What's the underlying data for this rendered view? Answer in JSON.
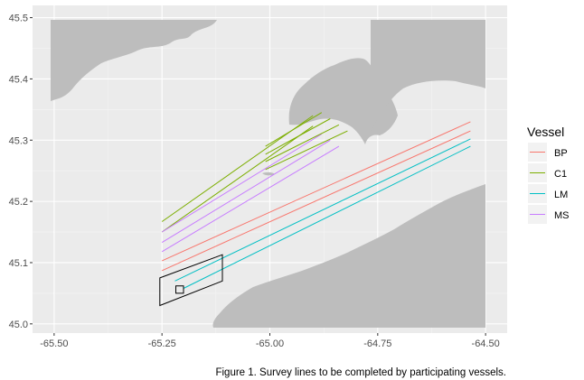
{
  "chart_data": {
    "type": "map",
    "caption": "Figure 1. Survey lines to be completed by participating vessels.",
    "x_ticks": [
      "-65.50",
      "-65.25",
      "-65.00",
      "-64.75",
      "-64.50"
    ],
    "y_ticks": [
      "45.0",
      "45.1",
      "45.2",
      "45.3",
      "45.4",
      "45.5"
    ],
    "x_tick_values": [
      -65.5,
      -65.25,
      -65.0,
      -64.75,
      -64.5
    ],
    "y_tick_values": [
      45.0,
      45.1,
      45.2,
      45.3,
      45.4,
      45.5
    ],
    "xlim": [
      -65.55,
      -64.45
    ],
    "ylim": [
      44.985,
      45.52
    ],
    "legend": {
      "title": "Vessel",
      "placement": "right",
      "entries": [
        {
          "label": "BP",
          "color": "#F8766D"
        },
        {
          "label": "C1",
          "color": "#7CAE00"
        },
        {
          "label": "LM",
          "color": "#00BFC4"
        },
        {
          "label": "MS",
          "color": "#C77CFF"
        }
      ]
    },
    "panel_background": "#ebebeb",
    "land_color": "#bdbdbd",
    "series": [
      {
        "name": "C1",
        "color": "#7CAE00",
        "lines": [
          [
            [
              -65.25,
              45.167
            ],
            [
              -64.9,
              45.34
            ]
          ],
          [
            [
              -65.25,
              45.15
            ],
            [
              -64.9,
              45.323
            ]
          ]
        ]
      },
      {
        "name": "MS",
        "color": "#C77CFF",
        "lines": [
          [
            [
              -65.25,
              45.15
            ],
            [
              -64.88,
              45.31
            ]
          ],
          [
            [
              -65.25,
              45.133
            ],
            [
              -64.86,
              45.3
            ]
          ],
          [
            [
              -65.25,
              45.118
            ],
            [
              -64.84,
              45.29
            ]
          ]
        ]
      },
      {
        "name": "BP",
        "color": "#F8766D",
        "lines": [
          [
            [
              -65.25,
              45.103
            ],
            [
              -64.535,
              45.33
            ]
          ],
          [
            [
              -65.25,
              45.087
            ],
            [
              -64.535,
              45.315
            ]
          ]
        ]
      },
      {
        "name": "LM",
        "color": "#00BFC4",
        "lines": [
          [
            [
              -65.22,
              45.07
            ],
            [
              -64.535,
              45.302
            ]
          ],
          [
            [
              -65.2,
              45.058
            ],
            [
              -64.535,
              45.29
            ]
          ]
        ]
      },
      {
        "name": "C1",
        "color": "#7CAE00",
        "lines": [
          [
            [
              -65.01,
              45.29
            ],
            [
              -64.88,
              45.345
            ]
          ],
          [
            [
              -65.01,
              45.277
            ],
            [
              -64.86,
              45.335
            ]
          ],
          [
            [
              -65.01,
              45.265
            ],
            [
              -64.84,
              45.325
            ]
          ],
          [
            [
              -65.01,
              45.252
            ],
            [
              -64.82,
              45.315
            ]
          ]
        ]
      }
    ],
    "boxes": [
      {
        "polygon": [
          [
            -65.255,
            45.03
          ],
          [
            -65.11,
            45.07
          ],
          [
            -65.11,
            45.113
          ],
          [
            -65.255,
            45.075
          ]
        ]
      },
      {
        "polygon": [
          [
            -65.218,
            45.05
          ],
          [
            -65.2,
            45.05
          ],
          [
            -65.2,
            45.062
          ],
          [
            -65.218,
            45.062
          ]
        ]
      }
    ]
  }
}
